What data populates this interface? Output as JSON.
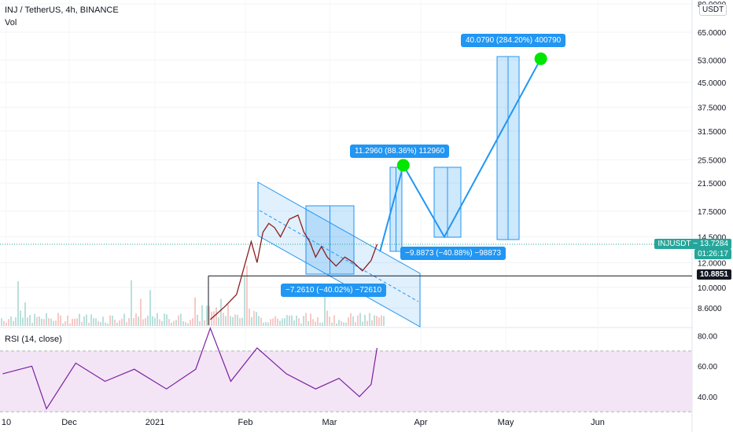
{
  "header": {
    "title": "INJ / TetherUS, 4h, BINANCE",
    "vol_label": "Vol",
    "rsi_label": "RSI (14, close)"
  },
  "currency_button": "USDT",
  "price_tag": {
    "symbol": "INJUSDT",
    "value": "13.7284",
    "countdown": "01:26:17",
    "color": "#26a69a"
  },
  "level_tag": {
    "value": "10.8851",
    "color": "#131722"
  },
  "measurements": [
    {
      "text": "40.0790 (284.20%) 400790"
    },
    {
      "text": "11.2960 (88.36%) 112960"
    },
    {
      "text": "−9.8873 (−40.88%) −98873"
    },
    {
      "text": "−7.2610 (−40.02%) −72610"
    }
  ],
  "colors": {
    "accent": "#2196f3",
    "rsi_line": "#7b1fa2",
    "rsi_band": "#f3e5f5",
    "target_marker": "#00e600",
    "up": "#26a69a",
    "down": "#ef5350"
  },
  "chart_data": [
    {
      "type": "line",
      "title": "INJ / TetherUS, 4h, BINANCE",
      "y_scale": "log",
      "y_ticks": [
        8.6,
        10.0,
        12.0,
        14.5,
        17.5,
        21.5,
        25.5,
        31.5,
        37.5,
        45.0,
        53.0,
        65.0,
        80.0
      ],
      "y_tick_labels": [
        "8.6000",
        "10.0000",
        "12.0000",
        "14.5000",
        "17.5000",
        "21.5000",
        "25.5000",
        "31.5000",
        "37.5000",
        "45.0000",
        "53.0000",
        "65.0000",
        "80.0000"
      ],
      "x_ticks": [
        "10",
        "Dec",
        "2021",
        "Feb",
        "Mar",
        "Apr",
        "May",
        "Jun"
      ],
      "grid": true,
      "series": [
        {
          "name": "INJUSDT",
          "x": [
            "2021-01-20",
            "2021-01-25",
            "2021-01-29",
            "2021-02-01",
            "2021-02-03",
            "2021-02-05",
            "2021-02-07",
            "2021-02-09",
            "2021-02-11",
            "2021-02-13",
            "2021-02-16",
            "2021-02-19",
            "2021-02-21",
            "2021-02-23",
            "2021-02-25",
            "2021-02-27",
            "2021-03-01",
            "2021-03-04",
            "2021-03-07",
            "2021-03-10",
            "2021-03-13",
            "2021-03-16",
            "2021-03-18"
          ],
          "values": [
            7.9,
            8.7,
            9.5,
            12.0,
            14.0,
            12.0,
            15.0,
            16.0,
            15.5,
            14.5,
            16.5,
            17.0,
            15.0,
            14.0,
            12.5,
            13.5,
            12.5,
            11.7,
            12.5,
            12.0,
            11.3,
            12.2,
            13.73
          ]
        },
        {
          "name": "projection",
          "x": [
            "2021-03-19",
            "2021-03-27",
            "2021-04-10",
            "2021-05-13"
          ],
          "values": [
            13.0,
            24.5,
            14.5,
            53.5
          ]
        }
      ],
      "horizontal_lines": [
        10.8851,
        13.7284
      ],
      "annotations": [
        "40.0790 (284.20%) 400790",
        "11.2960 (88.36%) 112960",
        "−9.8873 (−40.88%) −98873",
        "−7.2610 (−40.02%) −72610"
      ]
    },
    {
      "type": "line",
      "title": "RSI (14, close)",
      "y_ticks": [
        40.0,
        60.0,
        80.0
      ],
      "y_tick_labels": [
        "40.00",
        "60.00",
        "80.00"
      ],
      "band": [
        30,
        70
      ],
      "ylim": [
        26,
        88
      ],
      "series": [
        {
          "name": "RSI",
          "x": [
            "2020-11-10",
            "2020-11-20",
            "2020-11-25",
            "2020-12-05",
            "2020-12-15",
            "2020-12-25",
            "2021-01-05",
            "2021-01-15",
            "2021-01-20",
            "2021-01-27",
            "2021-02-05",
            "2021-02-15",
            "2021-02-25",
            "2021-03-05",
            "2021-03-12",
            "2021-03-16",
            "2021-03-18"
          ],
          "values": [
            55,
            60,
            32,
            62,
            50,
            58,
            45,
            58,
            85,
            50,
            72,
            55,
            45,
            52,
            40,
            48,
            72
          ]
        }
      ]
    }
  ]
}
